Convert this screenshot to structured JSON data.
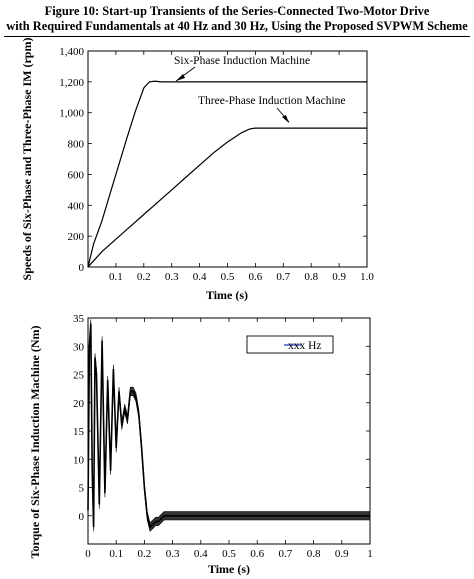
{
  "caption": {
    "line1": "Figure 10: Start-up Transients of the Series-Connected Two-Motor Drive",
    "line2": "with Required Fundamentals at 40 Hz and 30 Hz, Using the Proposed SVPWM Scheme"
  },
  "chart_data": [
    {
      "type": "line",
      "title": "",
      "xlabel": "Time (s)",
      "ylabel": "Speeds of Six-Phase and Three-Phase IM (rpm)",
      "xlim": [
        0,
        1.0
      ],
      "ylim": [
        0,
        1400
      ],
      "xticks": [
        "0.1",
        "0.2",
        "0.3",
        "0.4",
        "0.5",
        "0.6",
        "0.7",
        "0.8",
        "0.9",
        "1.0"
      ],
      "xtick_values": [
        0.1,
        0.2,
        0.3,
        0.4,
        0.5,
        0.6,
        0.7,
        0.8,
        0.9,
        1.0
      ],
      "yticks": [
        "0",
        "200",
        "400",
        "600",
        "800",
        "1,000",
        "1,200",
        "1,400"
      ],
      "ytick_values": [
        0,
        200,
        400,
        600,
        800,
        1000,
        1200,
        1400
      ],
      "grid": false,
      "annotations": [
        "Six-Phase Induction Machine",
        "Three-Phase Induction Machine"
      ],
      "series": [
        {
          "name": "Six-Phase Induction Machine",
          "x": [
            0,
            0.02,
            0.05,
            0.08,
            0.11,
            0.14,
            0.17,
            0.2,
            0.22,
            0.24,
            0.26,
            0.3,
            0.5,
            0.7,
            1.0
          ],
          "y": [
            0,
            150,
            300,
            480,
            660,
            840,
            1010,
            1160,
            1200,
            1205,
            1200,
            1200,
            1200,
            1200,
            1200
          ]
        },
        {
          "name": "Three-Phase Induction Machine",
          "x": [
            0,
            0.02,
            0.05,
            0.1,
            0.15,
            0.2,
            0.25,
            0.3,
            0.35,
            0.4,
            0.45,
            0.5,
            0.55,
            0.58,
            0.6,
            0.7,
            0.8,
            0.9,
            1.0
          ],
          "y": [
            0,
            40,
            100,
            180,
            260,
            340,
            420,
            500,
            580,
            660,
            740,
            810,
            870,
            895,
            900,
            900,
            900,
            900,
            900
          ]
        }
      ]
    },
    {
      "type": "line",
      "title": "",
      "xlabel": "Time (s)",
      "ylabel": "Torque of Six-Phase Induction Machine (Nm)",
      "xlim": [
        0,
        1.0
      ],
      "ylim": [
        -5,
        35
      ],
      "xticks": [
        "0",
        "0.1",
        "0.2",
        "0.3",
        "0.4",
        "0.5",
        "0.6",
        "0.7",
        "0.8",
        "0.9",
        "1"
      ],
      "xtick_values": [
        0,
        0.1,
        0.2,
        0.3,
        0.4,
        0.5,
        0.6,
        0.7,
        0.8,
        0.9,
        1.0
      ],
      "yticks": [
        "0",
        "5",
        "10",
        "15",
        "20",
        "25",
        "30",
        "35"
      ],
      "ytick_values": [
        0,
        5,
        10,
        15,
        20,
        25,
        30,
        35
      ],
      "grid": false,
      "legend": {
        "label": "xxx Hz",
        "position": "top-right"
      },
      "series": [
        {
          "name": "xxx Hz",
          "x": [
            0,
            0.005,
            0.01,
            0.015,
            0.02,
            0.025,
            0.03,
            0.04,
            0.05,
            0.06,
            0.07,
            0.08,
            0.09,
            0.1,
            0.11,
            0.12,
            0.13,
            0.14,
            0.15,
            0.16,
            0.17,
            0.18,
            0.19,
            0.2,
            0.21,
            0.22,
            0.23,
            0.24,
            0.25,
            0.26,
            0.27,
            0.28,
            0.3,
            0.35,
            0.4,
            0.5,
            0.6,
            0.7,
            0.8,
            0.9,
            1.0
          ],
          "y": [
            1,
            30,
            34,
            8,
            -2,
            28,
            25,
            2,
            31,
            4,
            24,
            8,
            26,
            12,
            22,
            16,
            19,
            17,
            22,
            22,
            21,
            18,
            12,
            5,
            0,
            -2,
            -1.5,
            -1,
            -1,
            -0.5,
            0,
            0,
            0,
            0,
            0,
            0,
            0,
            0,
            0,
            0,
            0
          ],
          "ripple_band": 1.5
        }
      ]
    }
  ]
}
